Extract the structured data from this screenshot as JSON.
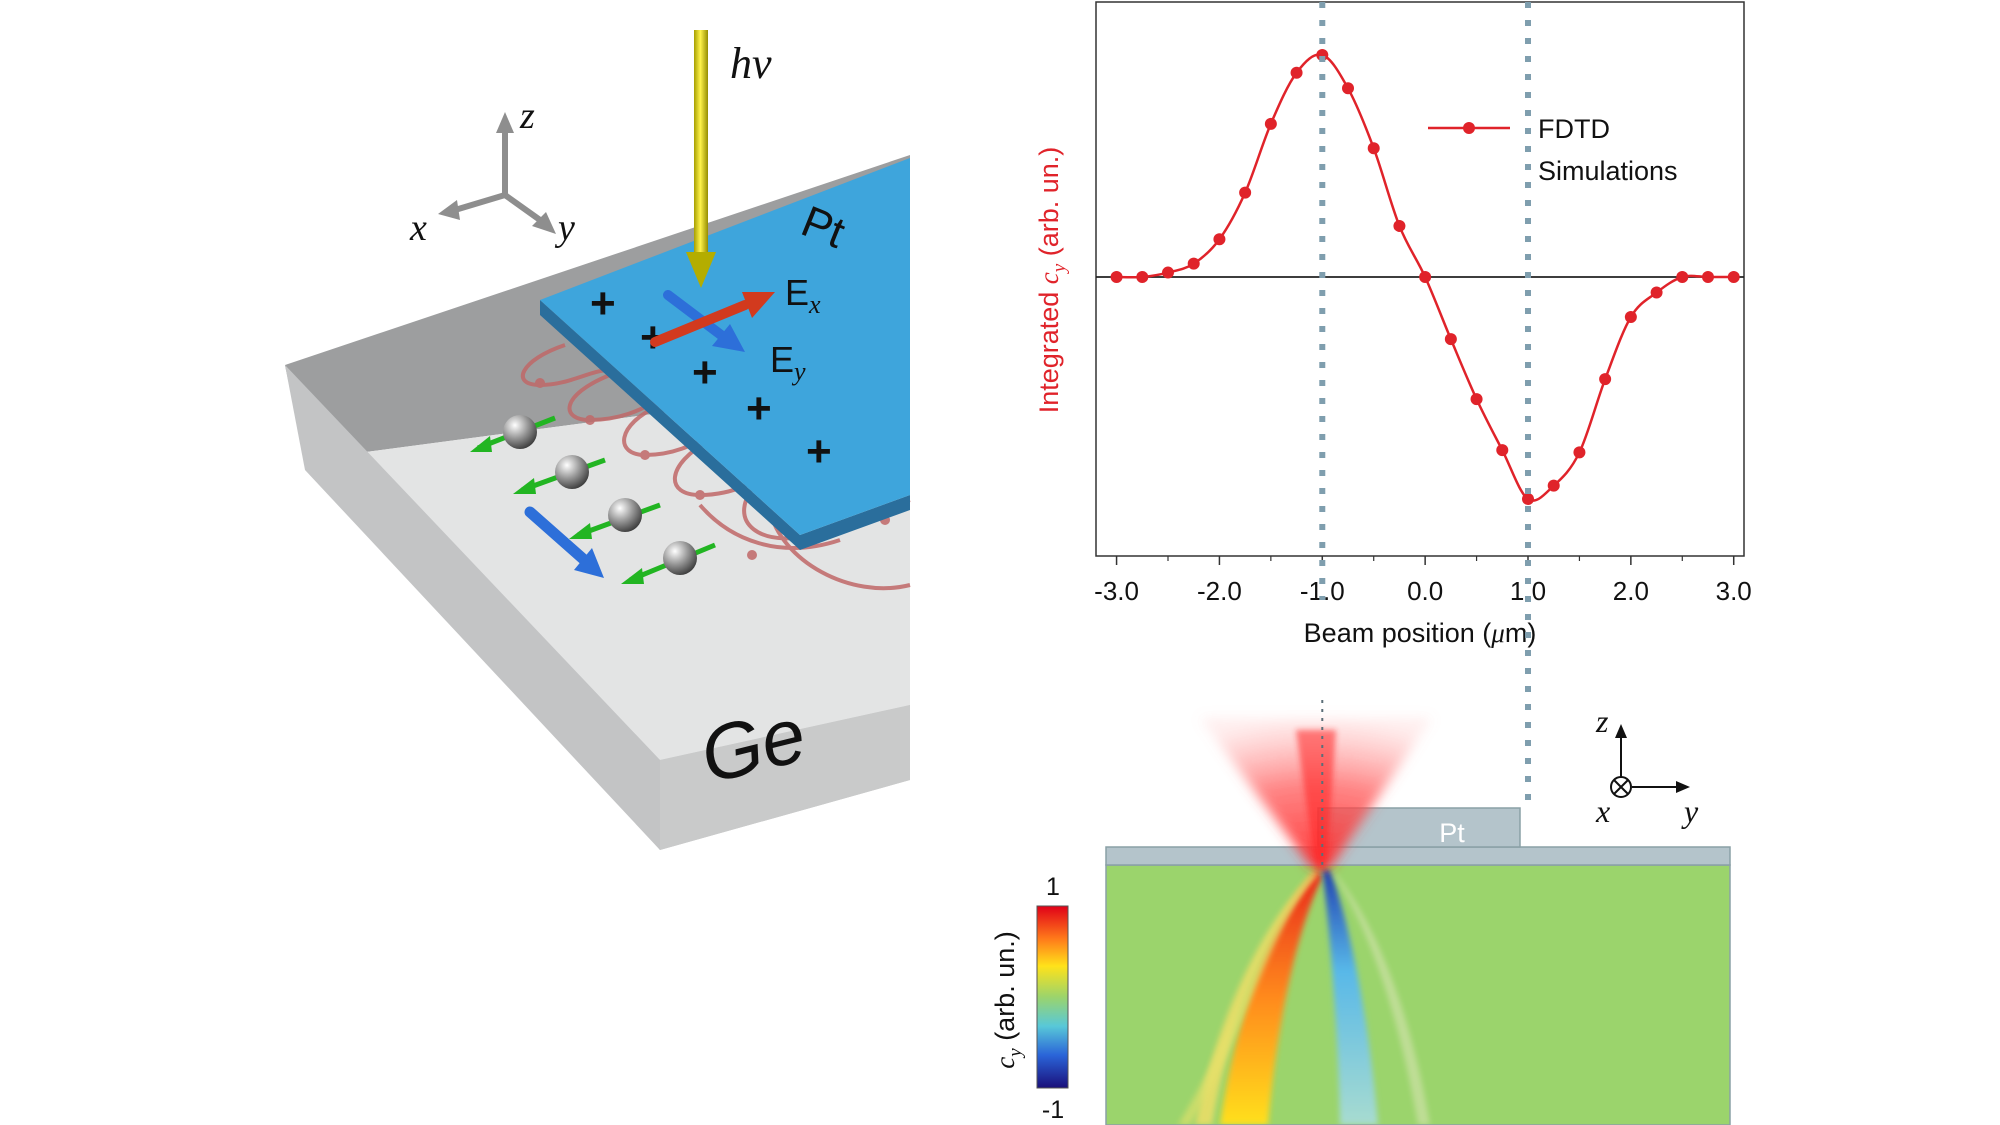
{
  "schematic": {
    "photon_label": "hν",
    "axis_x": "x",
    "axis_y": "y",
    "axis_z": "z",
    "pt_label": "Pt",
    "ge_label": "Ge",
    "ex_main": "E",
    "ex_sub": "x",
    "ey_main": "E",
    "ey_sub": "y",
    "plus_symbol": "+",
    "colors": {
      "pt": "#3ea5dc",
      "ge_top": "#e3e4e4",
      "ge_side": "#c9caca",
      "ge_back": "#9d9e9f",
      "photon": "#d6cf10",
      "spin_arrow": "#22b522",
      "ex_arrow": "#d23a1e",
      "ey_arrow": "#2d6fd9",
      "loop": "#c06868"
    }
  },
  "chart_data": {
    "type": "line",
    "x": [
      -3.0,
      -2.75,
      -2.5,
      -2.25,
      -2.0,
      -1.75,
      -1.5,
      -1.25,
      -1.0,
      -0.75,
      -0.5,
      -0.25,
      0.0,
      0.25,
      0.5,
      0.75,
      1.0,
      1.25,
      1.5,
      1.75,
      2.0,
      2.25,
      2.5,
      2.75,
      3.0
    ],
    "series": [
      {
        "name": "FDTD Simulations",
        "color": "#e0232a",
        "values": [
          0.0,
          0.0,
          0.02,
          0.06,
          0.17,
          0.38,
          0.69,
          0.92,
          1.0,
          0.85,
          0.58,
          0.23,
          0.0,
          -0.28,
          -0.55,
          -0.78,
          -1.0,
          -0.94,
          -0.79,
          -0.46,
          -0.18,
          -0.07,
          0.0,
          0.0,
          0.0
        ]
      }
    ],
    "xlabel_pre": "Beam position (",
    "xlabel_mu": "μ",
    "xlabel_post": "m)",
    "ylabel_pre": "Integrated ",
    "ylabel_c": "c",
    "ylabel_sub": "y",
    "ylabel_post": " (arb. un.)",
    "x_ticks": [
      "-3.0",
      "-2.0",
      "-1.0",
      "0.0",
      "1.0",
      "2.0",
      "3.0"
    ],
    "xlim": [
      -3.2,
      3.1
    ],
    "ylim": [
      -1.25,
      1.0
    ],
    "reference_lines": [
      -1.0,
      1.0
    ],
    "legend_line1": "FDTD",
    "legend_line2": "Simulations",
    "legend_position": "top-right",
    "grid": false
  },
  "field_map": {
    "pt_label": "Pt",
    "axis_z": "z",
    "axis_x": "x",
    "axis_y": "y",
    "colorbar_max": "1",
    "colorbar_min": "-1",
    "colorbar_label_c": "c",
    "colorbar_label_sub": "y",
    "colorbar_label_post": " (arb. un.)",
    "colors": {
      "background": "#9bd46c",
      "pt": "#b4c4cb",
      "beam": "#ff4040",
      "positive": "#e8281c",
      "negative": "#1f3fb0"
    }
  }
}
